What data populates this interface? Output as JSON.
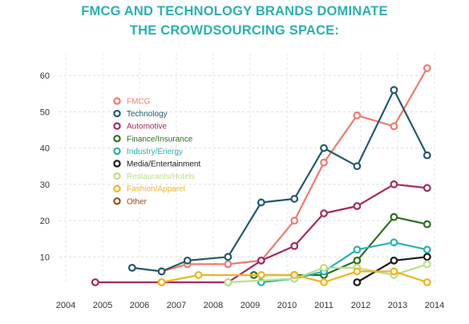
{
  "title_line1": "FMCG AND TECHNOLOGY BRANDS DOMINATE",
  "title_line2": "THE CROWDSOURCING SPACE:",
  "chart_data": {
    "type": "line",
    "title": "FMCG AND TECHNOLOGY BRANDS DOMINATE THE CROWDSOURCING SPACE:",
    "xlabel": "",
    "ylabel": "",
    "xlim": [
      2004,
      2014
    ],
    "ylim": [
      3,
      64
    ],
    "x_ticks": [
      "2004",
      "2005",
      "2006",
      "2007",
      "2008",
      "2009",
      "2010",
      "2011",
      "2012",
      "2013",
      "2014"
    ],
    "y_ticks": [
      "10",
      "20",
      "30",
      "40",
      "50",
      "60"
    ],
    "grid": "dashed",
    "legend_position": "top-left",
    "series": [
      {
        "name": "FMCG",
        "color": "#f27a6d",
        "points": [
          [
            2006.6,
            6
          ],
          [
            2007.3,
            8
          ],
          [
            2008.4,
            8
          ],
          [
            2009.3,
            9
          ],
          [
            2010.2,
            20
          ],
          [
            2011.0,
            36
          ],
          [
            2011.9,
            49
          ],
          [
            2012.9,
            46
          ],
          [
            2013.8,
            62
          ]
        ]
      },
      {
        "name": "Technology",
        "color": "#235a6e",
        "points": [
          [
            2005.8,
            7
          ],
          [
            2006.6,
            6
          ],
          [
            2007.3,
            9
          ],
          [
            2008.4,
            10
          ],
          [
            2009.3,
            25
          ],
          [
            2010.2,
            26
          ],
          [
            2011.0,
            40
          ],
          [
            2011.9,
            35
          ],
          [
            2012.9,
            56
          ],
          [
            2013.8,
            38
          ]
        ]
      },
      {
        "name": "Automotive",
        "color": "#a52a5e",
        "points": [
          [
            2004.8,
            3
          ],
          [
            2006.6,
            3
          ],
          [
            2008.4,
            3
          ],
          [
            2009.3,
            9
          ],
          [
            2010.2,
            13
          ],
          [
            2011.0,
            22
          ],
          [
            2011.9,
            24
          ],
          [
            2012.9,
            30
          ],
          [
            2013.8,
            29
          ]
        ]
      },
      {
        "name": "Finance/Insurance",
        "color": "#2e6e1e",
        "points": [
          [
            2009.1,
            5
          ],
          [
            2010.2,
            5
          ],
          [
            2011.0,
            5
          ],
          [
            2011.9,
            9
          ],
          [
            2012.9,
            21
          ],
          [
            2013.8,
            19
          ]
        ]
      },
      {
        "name": "Industry/Energy",
        "color": "#2ab1b3",
        "points": [
          [
            2009.3,
            3
          ],
          [
            2010.2,
            4
          ],
          [
            2011.0,
            6
          ],
          [
            2011.9,
            12
          ],
          [
            2012.9,
            14
          ],
          [
            2013.8,
            12
          ]
        ]
      },
      {
        "name": "Media/Entertainment",
        "color": "#1a1a1a",
        "points": [
          [
            2011.9,
            3
          ],
          [
            2012.9,
            9
          ],
          [
            2013.8,
            10
          ]
        ]
      },
      {
        "name": "Restaurants/Hotels",
        "color": "#b9e08a",
        "points": [
          [
            2008.4,
            3
          ],
          [
            2010.2,
            4
          ],
          [
            2011.0,
            7
          ],
          [
            2011.9,
            7
          ],
          [
            2012.9,
            5
          ],
          [
            2013.8,
            8
          ]
        ]
      },
      {
        "name": "Fashion/Apparel",
        "color": "#f0b420",
        "points": [
          [
            2006.6,
            3
          ],
          [
            2007.6,
            5
          ],
          [
            2009.3,
            5
          ],
          [
            2010.2,
            5
          ],
          [
            2011.0,
            3
          ],
          [
            2011.9,
            6
          ],
          [
            2012.9,
            6
          ],
          [
            2013.8,
            3
          ]
        ]
      },
      {
        "name": "Other",
        "color": "#9a4a1e",
        "points": []
      }
    ]
  }
}
